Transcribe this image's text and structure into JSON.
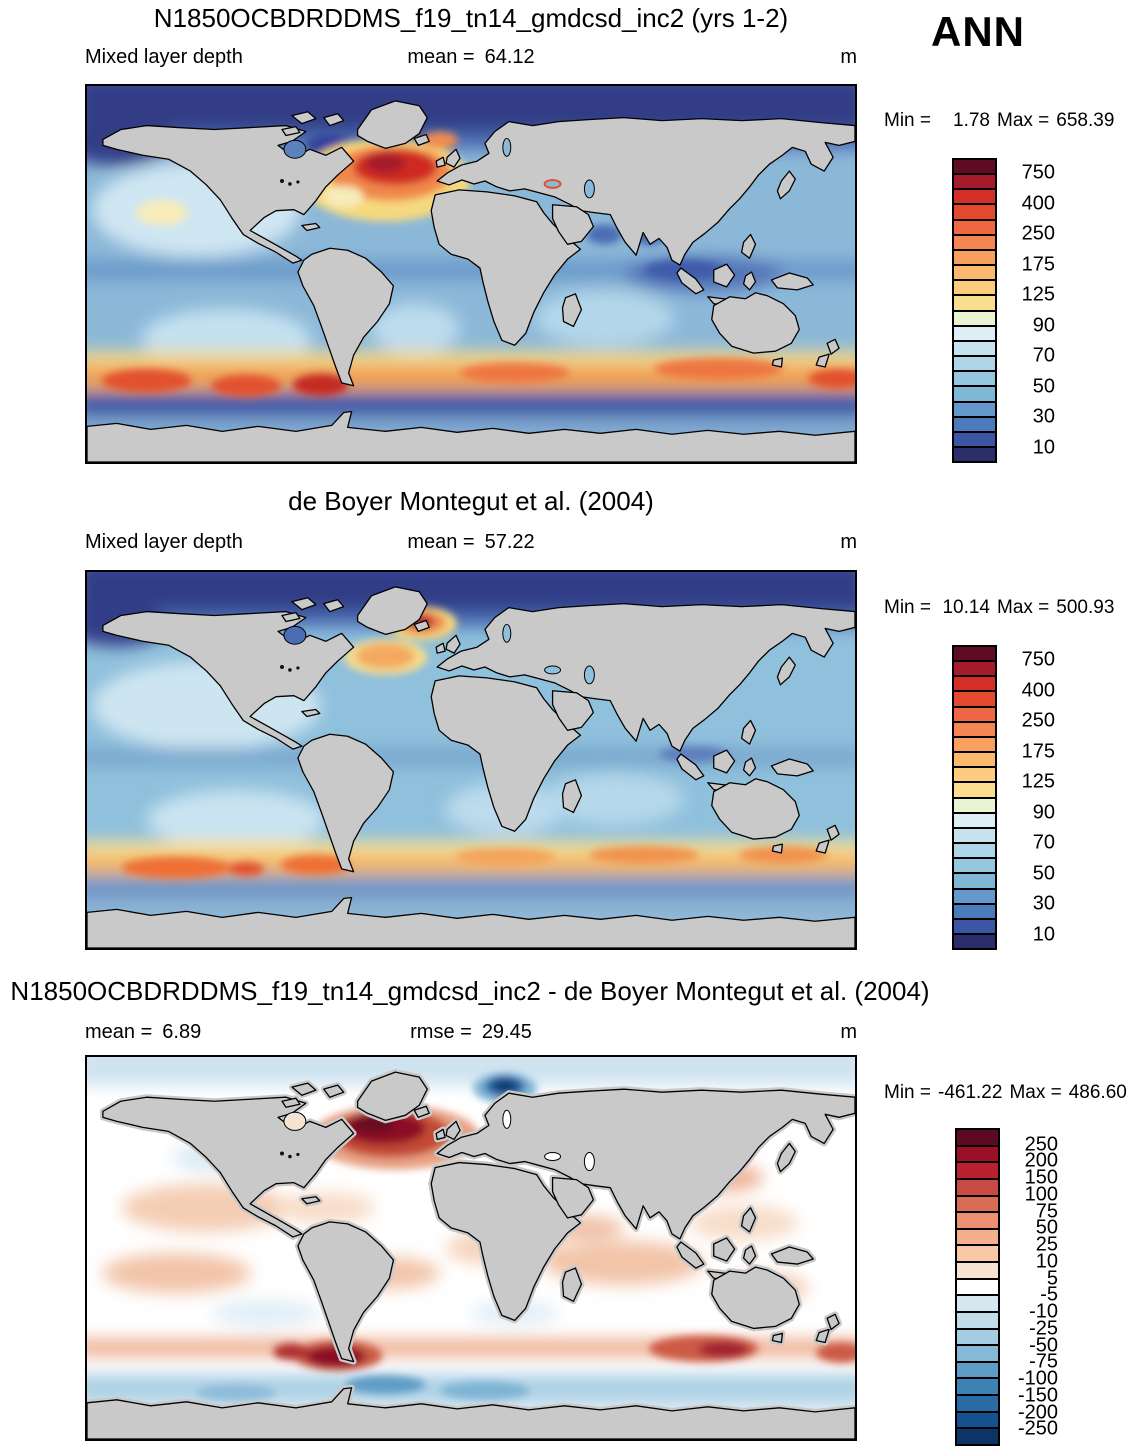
{
  "season": "ANN",
  "panels": [
    {
      "name": "model",
      "title": "N1850OCBDRDDMS_f19_tn14_gmdcsd_inc2 (yrs 1-2)",
      "field_label": "Mixed layer depth",
      "mean_label": "mean =",
      "mean_value": "64.12",
      "units": "m",
      "min_label": "Min =",
      "min_value": "1.78",
      "max_label": "Max =",
      "max_value": "658.39"
    },
    {
      "name": "observations",
      "title": "de Boyer Montegut et al. (2004)",
      "field_label": "Mixed layer depth",
      "mean_label": "mean =",
      "mean_value": "57.22",
      "units": "m",
      "min_label": "Min =",
      "min_value": "10.14",
      "max_label": "Max =",
      "max_value": "500.93"
    },
    {
      "name": "difference",
      "title": "N1850OCBDRDDMS_f19_tn14_gmdcsd_inc2 - de Boyer Montegut et al. (2004)",
      "mean_label": "mean =",
      "mean_value": "6.89",
      "rmse_label": "rmse =",
      "rmse_value": "29.45",
      "units": "m",
      "min_label": "Min =",
      "min_value": "-461.22",
      "max_label": "Max =",
      "max_value": "486.60"
    }
  ],
  "colorbars": {
    "mld": {
      "colors": [
        "#5e0b23",
        "#a41b2c",
        "#d42f26",
        "#e2492f",
        "#f06744",
        "#f58653",
        "#f9a05f",
        "#fbb96d",
        "#fccd7e",
        "#fade8e",
        "#e9f4d3",
        "#ddeef5",
        "#c5e2ee",
        "#aed6e8",
        "#96c7e0",
        "#7fb7d7",
        "#6699cb",
        "#4c7bbb",
        "#3a56a5",
        "#2b2e6b"
      ],
      "ticks": [
        {
          "i": 1,
          "label": "750"
        },
        {
          "i": 3,
          "label": "400"
        },
        {
          "i": 5,
          "label": "250"
        },
        {
          "i": 7,
          "label": "175"
        },
        {
          "i": 9,
          "label": "125"
        },
        {
          "i": 11,
          "label": "90"
        },
        {
          "i": 13,
          "label": "70"
        },
        {
          "i": 15,
          "label": "50"
        },
        {
          "i": 17,
          "label": "30"
        },
        {
          "i": 19,
          "label": "10"
        }
      ]
    },
    "diff": {
      "colors": [
        "#5c0a21",
        "#9c1027",
        "#b92032",
        "#c94a44",
        "#d96c56",
        "#ec9071",
        "#f4b08d",
        "#f8c8a9",
        "#f6e3d4",
        "#ffffff",
        "#d7e7f1",
        "#c2dcea",
        "#a5cde2",
        "#85b9d6",
        "#5e9cc5",
        "#3d82b5",
        "#2a6aa5",
        "#15508f",
        "#0c3566"
      ],
      "ticks": [
        {
          "i": 1,
          "label": "250"
        },
        {
          "i": 2,
          "label": "200"
        },
        {
          "i": 3,
          "label": "150"
        },
        {
          "i": 4,
          "label": "100"
        },
        {
          "i": 5,
          "label": "75"
        },
        {
          "i": 6,
          "label": "50"
        },
        {
          "i": 7,
          "label": "25"
        },
        {
          "i": 8,
          "label": "10"
        },
        {
          "i": 9,
          "label": "5"
        },
        {
          "i": 10,
          "label": "-5"
        },
        {
          "i": 11,
          "label": "-10"
        },
        {
          "i": 12,
          "label": "-25"
        },
        {
          "i": 13,
          "label": "-50"
        },
        {
          "i": 14,
          "label": "-75"
        },
        {
          "i": 15,
          "label": "-100"
        },
        {
          "i": 16,
          "label": "-150"
        },
        {
          "i": 17,
          "label": "-200"
        },
        {
          "i": 18,
          "label": "-250"
        }
      ]
    }
  },
  "chart_data": [
    {
      "type": "heatmap",
      "title": "N1850OCBDRDDMS_f19_tn14_gmdcsd_inc2 (yrs 1-2)",
      "variable": "Mixed layer depth",
      "season": "ANN",
      "units": "m",
      "projection": "global equirectangular map, 90N-90S, gray continents",
      "stats": {
        "mean": 64.12,
        "min": 1.78,
        "max": 658.39
      },
      "contour_levels": [
        10,
        20,
        30,
        40,
        50,
        60,
        70,
        80,
        90,
        100,
        125,
        150,
        175,
        200,
        250,
        300,
        400,
        500,
        750
      ],
      "labeled_levels": [
        750,
        400,
        250,
        175,
        125,
        90,
        70,
        50,
        30,
        10
      ],
      "palette_high_to_low": [
        "#5e0b23",
        "#a41b2c",
        "#d42f26",
        "#e2492f",
        "#f06744",
        "#f58653",
        "#f9a05f",
        "#fbb96d",
        "#fccd7e",
        "#fade8e",
        "#e9f4d3",
        "#ddeef5",
        "#c5e2ee",
        "#aed6e8",
        "#96c7e0",
        "#7fb7d7",
        "#6699cb",
        "#4c7bbb",
        "#3a56a5",
        "#2b2e6b"
      ],
      "legend_position": "right",
      "notable_features": [
        "deep mixed layers (250-750 m, red/orange) in subpolar North Atlantic south of Iceland and Greenland",
        "orange-yellow zonal band (100-300 m) along Southern Ocean 40-60S, strongest west of Drake Passage",
        "shallow (10-30 m, dark navy) Arctic band and near-coastal tropics",
        "light blue (30-70 m) over most subtropical oceans"
      ]
    },
    {
      "type": "heatmap",
      "title": "de Boyer Montegut et al. (2004)",
      "variable": "Mixed layer depth",
      "season": "ANN",
      "units": "m",
      "projection": "global equirectangular map, 90N-90S, gray continents",
      "stats": {
        "mean": 57.22,
        "min": 10.14,
        "max": 500.93
      },
      "contour_levels": [
        10,
        20,
        30,
        40,
        50,
        60,
        70,
        80,
        90,
        100,
        125,
        150,
        175,
        200,
        250,
        300,
        400,
        500,
        750
      ],
      "labeled_levels": [
        750,
        400,
        250,
        175,
        125,
        90,
        70,
        50,
        30,
        10
      ],
      "palette_high_to_low": [
        "#5e0b23",
        "#a41b2c",
        "#d42f26",
        "#e2492f",
        "#f06744",
        "#f58653",
        "#f9a05f",
        "#fbb96d",
        "#fccd7e",
        "#fade8e",
        "#e9f4d3",
        "#ddeef5",
        "#c5e2ee",
        "#aed6e8",
        "#96c7e0",
        "#7fb7d7",
        "#6699cb",
        "#4c7bbb",
        "#3a56a5",
        "#2b2e6b"
      ],
      "legend_position": "right",
      "notable_features": [
        "observed deep-mixing maximum (400-500 m, dark red spot) south of Iceland",
        "moderate orange band (100-250 m) along Southern Ocean 40-55S",
        "generally shallower and smoother field than the model"
      ]
    },
    {
      "type": "heatmap",
      "title": "N1850OCBDRDDMS_f19_tn14_gmdcsd_inc2 - de Boyer Montegut et al. (2004)",
      "variable": "Mixed layer depth difference (model minus observations)",
      "season": "ANN",
      "units": "m",
      "stats": {
        "mean": 6.89,
        "rmse": 29.45,
        "min": -461.22,
        "max": 486.6
      },
      "contour_levels": [
        -250,
        -200,
        -150,
        -100,
        -75,
        -50,
        -25,
        -10,
        -5,
        5,
        10,
        25,
        50,
        75,
        100,
        150,
        200,
        250
      ],
      "labeled_levels": [
        250,
        200,
        150,
        100,
        75,
        50,
        25,
        10,
        5,
        -5,
        -10,
        -25,
        -50,
        -75,
        -100,
        -150,
        -200,
        -250
      ],
      "palette_high_to_low": [
        "#5c0a21",
        "#9c1027",
        "#b92032",
        "#c94a44",
        "#d96c56",
        "#ec9071",
        "#f4b08d",
        "#f8c8a9",
        "#f6e3d4",
        "#ffffff",
        "#d7e7f1",
        "#c2dcea",
        "#a5cde2",
        "#85b9d6",
        "#5e9cc5",
        "#3d82b5",
        "#2a6aa5",
        "#15508f",
        "#0c3566"
      ],
      "legend_position": "right",
      "notable_features": [
        "strong positive bias (dark red, >250 m) in subpolar North Atlantic",
        "strong negative bias (dark blue) in Nordic Seas north of Iceland",
        "positive red band near 45S with maxima east of South America and south of Australia",
        "negative light-blue band along 55-65S near Antarctica",
        "weak positive (pale pink) bias over most subtropical oceans"
      ]
    }
  ]
}
